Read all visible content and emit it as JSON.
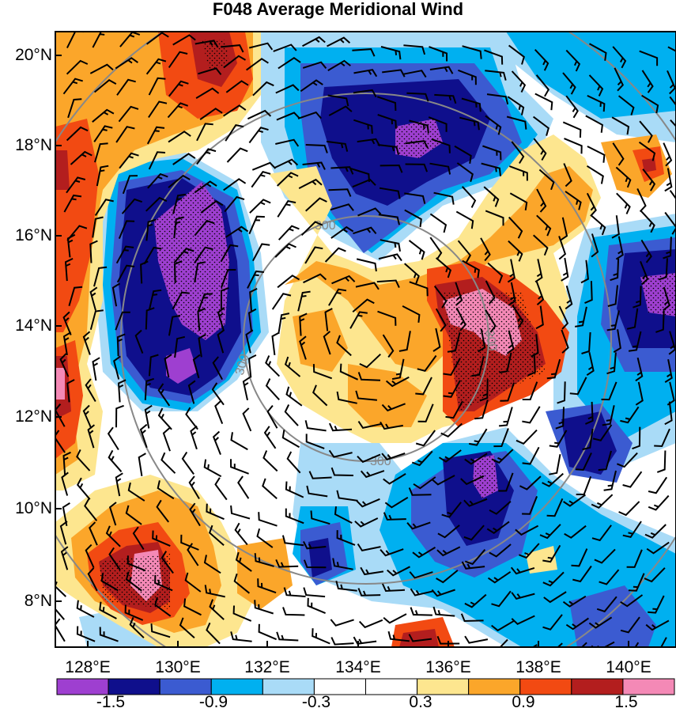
{
  "title": "F048 Average Meridional Wind",
  "lat_labels": [
    "20°N",
    "18°N",
    "16°N",
    "14°N",
    "12°N",
    "10°N",
    "8°N"
  ],
  "lon_labels": [
    "128°E",
    "130°E",
    "132°E",
    "134°E",
    "136°E",
    "138°E",
    "140°E"
  ],
  "colorbar": {
    "colors": [
      "#9e3fd0",
      "#0f0f8c",
      "#3b5bd1",
      "#00b0f0",
      "#a9dbf7",
      "#ffffff",
      "#ffffff",
      "#fde68f",
      "#fba62a",
      "#f24a12",
      "#b31e1e",
      "#f489b6"
    ],
    "labels": [
      "-1.5",
      "-0.9",
      "-0.3",
      "0.3",
      "0.9",
      "1.5"
    ]
  },
  "range_rings": {
    "label": "300"
  }
}
